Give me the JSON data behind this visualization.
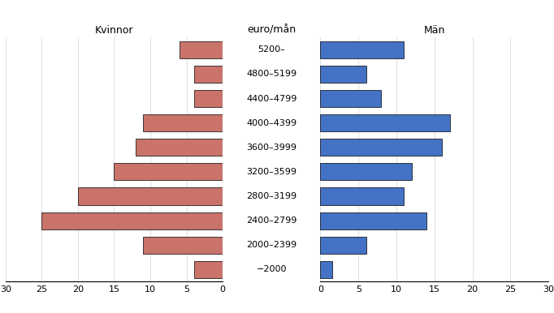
{
  "categories": [
    "5200–",
    "4800–5199",
    "4400–4799",
    "4000–4399",
    "3600–3999",
    "3200–3599",
    "2800–3199",
    "2400–2799",
    "2000–2399",
    "−2000"
  ],
  "kvinnor": [
    6,
    4,
    4,
    11,
    12,
    15,
    20,
    25,
    11,
    4
  ],
  "man": [
    11,
    6,
    8,
    17,
    16,
    12,
    11,
    14,
    6,
    1.5
  ],
  "title_left": "Kvinnor",
  "title_right": "Män",
  "center_label": "euro/mån",
  "xlim": 30,
  "bar_color_left": "#c9736a",
  "bar_color_right": "#4472c4",
  "background_color": "#ffffff",
  "tick_vals": [
    0,
    5,
    10,
    15,
    20,
    25,
    30
  ],
  "bar_height": 0.7
}
